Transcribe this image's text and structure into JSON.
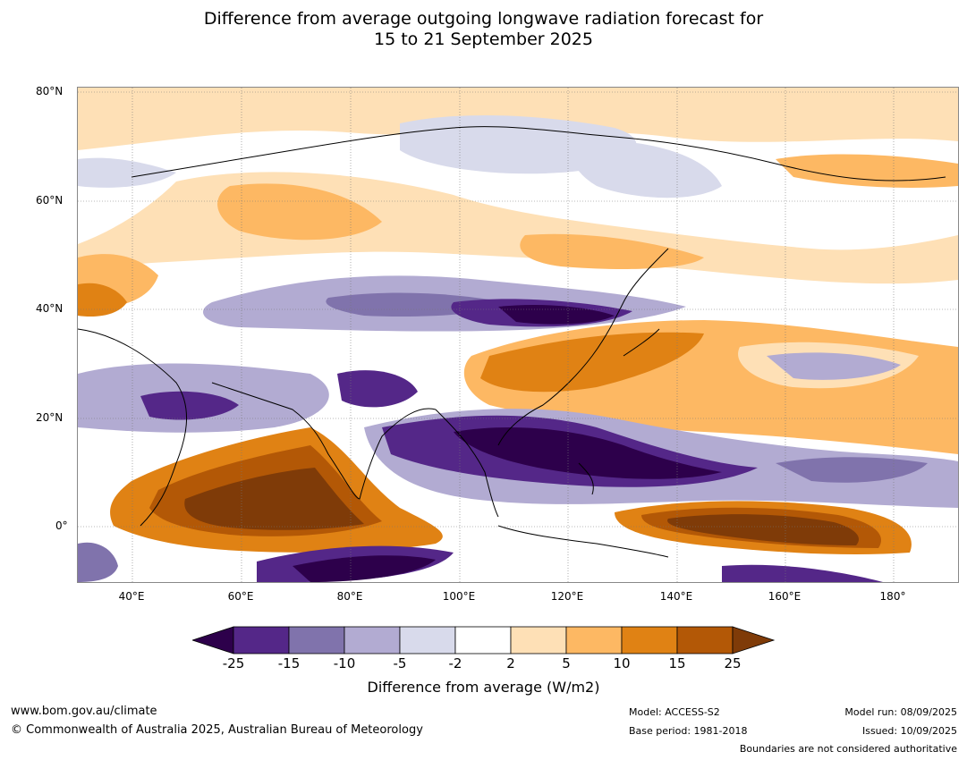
{
  "title": {
    "line1": "Difference from average outgoing longwave radiation forecast for",
    "line2": "15 to 21 September 2025"
  },
  "map": {
    "lat_labels": [
      "80°N",
      "60°N",
      "40°N",
      "20°N",
      "0°"
    ],
    "lon_labels": [
      "40°E",
      "60°E",
      "80°E",
      "100°E",
      "120°E",
      "140°E",
      "160°E",
      "180°"
    ]
  },
  "colorbar": {
    "ticks": [
      "-25",
      "-15",
      "-10",
      "-5",
      "-2",
      "2",
      "5",
      "10",
      "15",
      "25"
    ],
    "colors": [
      "#2d004b",
      "#542788",
      "#8073ac",
      "#b2abd2",
      "#d8daeb",
      "#ffffff",
      "#fee0b6",
      "#fdb863",
      "#e08214",
      "#b35806",
      "#7f3b08"
    ],
    "label": "Difference from average (W/m2)"
  },
  "footer": {
    "website": "www.bom.gov.au/climate",
    "copyright": "© Commonwealth of Australia 2025, Australian Bureau of Meteorology",
    "model": "Model: ACCESS-S2",
    "base_period": "Base period: 1981-2018",
    "model_run": "Model run: 08/09/2025",
    "issued": "Issued: 10/09/2025",
    "disclaimer": "Boundaries are not considered authoritative"
  }
}
